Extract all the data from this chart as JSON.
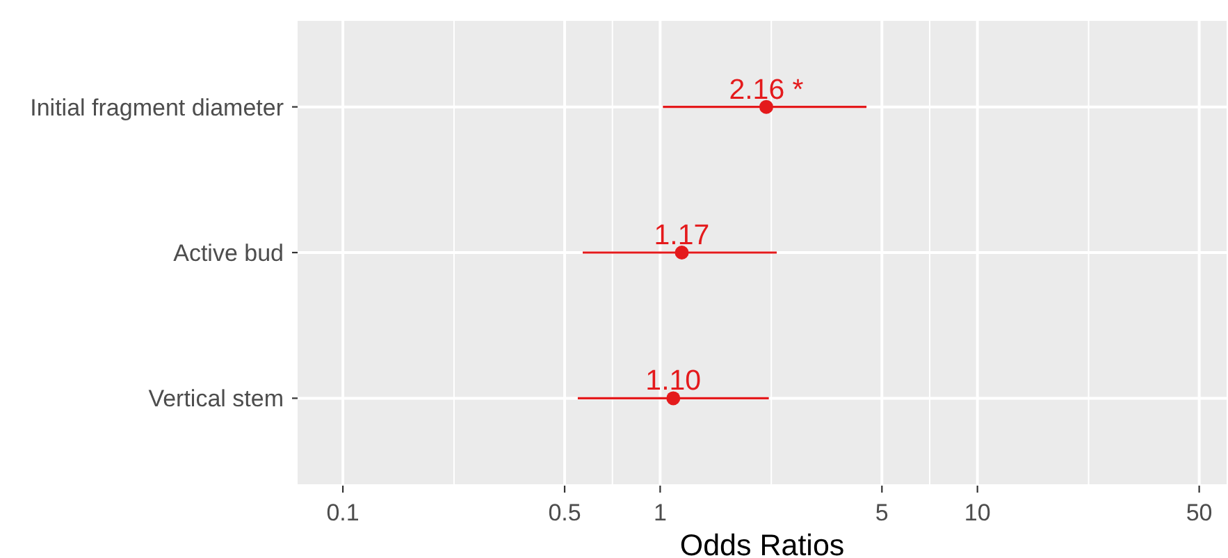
{
  "chart_data": {
    "type": "scatter",
    "orientation": "horizontal",
    "xlabel": "Odds Ratios",
    "categories": [
      "Initial fragment diameter",
      "Active bud",
      "Vertical stem"
    ],
    "values": [
      2.16,
      1.17,
      1.1
    ],
    "errors": [
      [
        1.02,
        4.47
      ],
      [
        0.57,
        2.33
      ],
      [
        0.55,
        2.2
      ]
    ],
    "value_labels": [
      "2.16 *",
      "1.17",
      "1.10"
    ],
    "color": "#e41a1c",
    "xlim": [
      0.072,
      61
    ],
    "xticks": [
      0.1,
      {
        "value": 0.224,
        "label": null
      },
      0.5,
      {
        "value": 0.707,
        "label": null
      },
      1,
      {
        "value": 2.24,
        "label": null
      },
      5,
      {
        "value": 7.07,
        "label": null
      },
      10,
      {
        "value": 22.4,
        "label": null
      },
      50
    ],
    "log": "x",
    "grid": true,
    "marker": "circle"
  }
}
